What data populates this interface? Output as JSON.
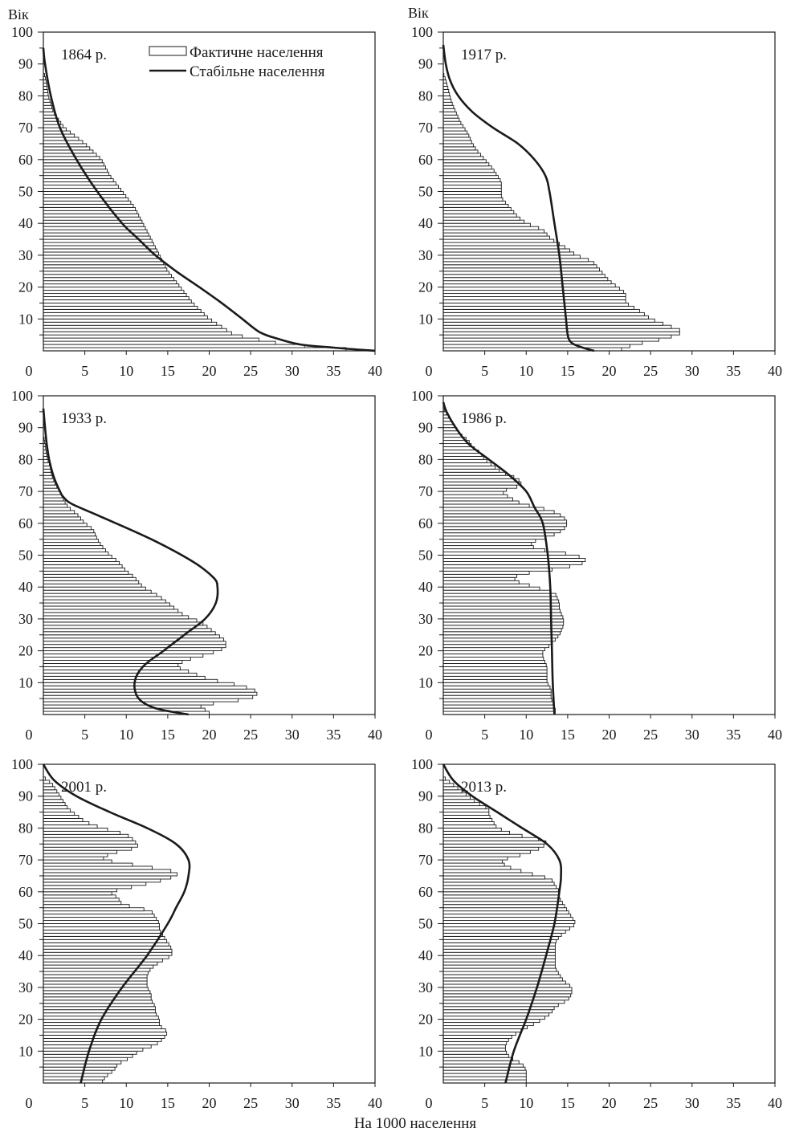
{
  "figure": {
    "ylabel": "Вік",
    "xlabel": "На 1000 населення"
  },
  "legend": {
    "actual_label": "Фактичне населення",
    "stable_label": "Стабільне населення"
  },
  "chart_data": [
    {
      "type": "bar",
      "title": "1864 р.",
      "xlim": [
        0,
        40
      ],
      "ylim": [
        0,
        100
      ],
      "xticks": [
        0,
        5,
        10,
        15,
        20,
        25,
        30,
        35,
        40
      ],
      "yticks": [
        10,
        20,
        30,
        40,
        50,
        60,
        70,
        80,
        90,
        100
      ],
      "actual": {
        "ages": [
          0,
          2,
          5,
          10,
          15,
          20,
          25,
          30,
          35,
          40,
          45,
          50,
          55,
          60,
          65,
          70,
          73,
          75,
          80,
          85,
          88
        ],
        "values": [
          39,
          29,
          23,
          20,
          18,
          16.5,
          15,
          14,
          13,
          12,
          11,
          9.5,
          8,
          7,
          5,
          2.5,
          1.7,
          1.2,
          0.6,
          0.3,
          0
        ]
      },
      "stable": {
        "ages": [
          0,
          1,
          2,
          4,
          6,
          10,
          15,
          20,
          25,
          30,
          35,
          40,
          50,
          60,
          70,
          80,
          90,
          95
        ],
        "values": [
          40,
          35,
          31,
          28,
          26,
          24,
          21.5,
          18.8,
          16,
          13.5,
          11.5,
          9.5,
          6.5,
          4,
          2,
          0.9,
          0.2,
          0
        ]
      }
    },
    {
      "type": "bar",
      "title": "1917 р.",
      "xlim": [
        0,
        40
      ],
      "ylim": [
        0,
        100
      ],
      "xticks": [
        0,
        5,
        10,
        15,
        20,
        25,
        30,
        35,
        40
      ],
      "yticks": [
        10,
        20,
        30,
        40,
        50,
        60,
        70,
        80,
        90,
        100
      ],
      "actual": {
        "ages": [
          0,
          2,
          4,
          6,
          8,
          10,
          12,
          15,
          18,
          20,
          22,
          25,
          28,
          30,
          32,
          35,
          38,
          40,
          42,
          45,
          48,
          50,
          53,
          55,
          57,
          60,
          63,
          65,
          68,
          70,
          72,
          75,
          78,
          80,
          83,
          85,
          87
        ],
        "values": [
          21,
          23,
          27,
          29,
          27,
          25,
          24,
          22,
          22,
          21,
          20,
          19,
          18,
          16,
          15,
          13,
          12,
          10,
          9,
          8,
          7,
          7,
          7,
          6.5,
          6,
          5,
          4,
          3.5,
          3,
          2.5,
          2,
          1.5,
          1,
          0.8,
          0.5,
          0.3,
          0
        ]
      },
      "stable": {
        "ages": [
          0,
          1,
          2,
          3,
          5,
          10,
          20,
          30,
          40,
          50,
          55,
          60,
          65,
          70,
          75,
          80,
          85,
          90,
          96
        ],
        "values": [
          18.2,
          16.8,
          15.8,
          15.3,
          15,
          14.8,
          14.4,
          14,
          13.4,
          12.8,
          12.3,
          11,
          9,
          6,
          3.5,
          1.8,
          0.8,
          0.3,
          0
        ]
      }
    },
    {
      "type": "bar",
      "title": "1933 р.",
      "xlim": [
        0,
        40
      ],
      "ylim": [
        0,
        100
      ],
      "xticks": [
        0,
        5,
        10,
        15,
        20,
        25,
        30,
        35,
        40
      ],
      "yticks": [
        10,
        20,
        30,
        40,
        50,
        60,
        70,
        80,
        90,
        100
      ],
      "actual": {
        "ages": [
          0,
          1,
          2,
          3,
          5,
          7,
          9,
          11,
          13,
          15,
          17,
          19,
          21,
          23,
          25,
          27,
          29,
          31,
          33,
          35,
          37,
          40,
          43,
          45,
          48,
          50,
          53,
          55,
          58,
          60,
          63,
          65,
          67,
          70,
          72,
          75,
          78,
          80,
          83,
          85,
          88
        ],
        "values": [
          20,
          20,
          19,
          19,
          25,
          26,
          24,
          20,
          18,
          16,
          17,
          20,
          22,
          22,
          21,
          20,
          19,
          17,
          16,
          15,
          14,
          12,
          11,
          10,
          9,
          8,
          7,
          6.5,
          6,
          5,
          4,
          3,
          2.5,
          2,
          1.5,
          1,
          0.8,
          0.5,
          0.3,
          0.2,
          0
        ]
      },
      "stable": {
        "ages": [
          0,
          2,
          5,
          10,
          15,
          20,
          25,
          30,
          35,
          40,
          43,
          48,
          55,
          62,
          66,
          68,
          70,
          75,
          80,
          85,
          90,
          96
        ],
        "values": [
          17.5,
          13.5,
          11.5,
          11,
          12,
          14.5,
          17,
          19.5,
          20.8,
          21,
          20.5,
          18,
          13,
          7,
          3.5,
          2.5,
          2,
          1.2,
          0.7,
          0.4,
          0.2,
          0
        ]
      }
    },
    {
      "type": "bar",
      "title": "1986 р.",
      "xlim": [
        0,
        40
      ],
      "ylim": [
        0,
        100
      ],
      "xticks": [
        0,
        5,
        10,
        15,
        20,
        25,
        30,
        35,
        40
      ],
      "yticks": [
        10,
        20,
        30,
        40,
        50,
        60,
        70,
        80,
        90,
        100
      ],
      "actual": {
        "ages": [
          0,
          2,
          5,
          8,
          10,
          13,
          15,
          18,
          20,
          22,
          25,
          28,
          30,
          33,
          35,
          38,
          40,
          42,
          44,
          46,
          48,
          50,
          52,
          54,
          56,
          58,
          60,
          62,
          64,
          66,
          68,
          70,
          72,
          74,
          76,
          78,
          80,
          82,
          84,
          86,
          88,
          90,
          92,
          94,
          96
        ],
        "values": [
          13.5,
          13.5,
          13,
          13,
          12.5,
          12.5,
          12.5,
          12,
          12,
          13,
          14,
          14.5,
          14.5,
          14,
          14,
          13.5,
          11,
          8.5,
          9,
          14.5,
          17.5,
          16,
          11,
          10.5,
          13,
          14.5,
          15,
          14.5,
          13,
          9.5,
          8,
          7,
          9.5,
          9,
          7,
          6,
          5,
          4.5,
          3.5,
          3,
          2,
          1.5,
          1,
          0.5,
          0
        ]
      },
      "stable": {
        "ages": [
          0,
          10,
          20,
          30,
          40,
          50,
          60,
          65,
          70,
          75,
          80,
          85,
          90,
          95,
          98
        ],
        "values": [
          13.4,
          13.2,
          13.1,
          13,
          12.9,
          12.6,
          12,
          11,
          10,
          8,
          5.5,
          3,
          1.5,
          0.4,
          0
        ]
      }
    },
    {
      "type": "bar",
      "title": "2001 р.",
      "xlim": [
        0,
        40
      ],
      "ylim": [
        0,
        100
      ],
      "xticks": [
        0,
        5,
        10,
        15,
        20,
        25,
        30,
        35,
        40
      ],
      "yticks": [
        10,
        20,
        30,
        40,
        50,
        60,
        70,
        80,
        90,
        100
      ],
      "actual": {
        "ages": [
          0,
          2,
          4,
          6,
          8,
          10,
          12,
          14,
          16,
          18,
          20,
          22,
          24,
          26,
          28,
          30,
          32,
          34,
          36,
          38,
          40,
          42,
          44,
          46,
          48,
          50,
          52,
          54,
          56,
          58,
          60,
          62,
          64,
          66,
          68,
          70,
          72,
          74,
          76,
          78,
          80,
          82,
          84,
          86,
          88,
          90,
          92,
          94,
          96
        ],
        "values": [
          7,
          7.5,
          8.5,
          9,
          10.5,
          11.5,
          13.5,
          14.5,
          15,
          14,
          14,
          13.5,
          13.5,
          13,
          13,
          12.5,
          12.5,
          12.5,
          13,
          14,
          15.5,
          15.5,
          15,
          14.5,
          14,
          14,
          13.5,
          13,
          9.5,
          9,
          8,
          11.5,
          15,
          16.5,
          12,
          7,
          8,
          11.5,
          11,
          10,
          7,
          5,
          4,
          3,
          2.5,
          2,
          1.5,
          1,
          0
        ]
      },
      "stable": {
        "ages": [
          0,
          10,
          20,
          30,
          40,
          50,
          55,
          60,
          65,
          70,
          75,
          80,
          85,
          90,
          95,
          100
        ],
        "values": [
          4.5,
          5.5,
          7,
          9.5,
          12.5,
          15,
          16,
          17,
          17.5,
          17.5,
          16,
          12.5,
          8,
          4,
          1.3,
          0
        ]
      }
    },
    {
      "type": "bar",
      "title": "2013 р.",
      "xlim": [
        0,
        40
      ],
      "ylim": [
        0,
        100
      ],
      "xticks": [
        0,
        5,
        10,
        15,
        20,
        25,
        30,
        35,
        40
      ],
      "yticks": [
        10,
        20,
        30,
        40,
        50,
        60,
        70,
        80,
        90,
        100
      ],
      "actual": {
        "ages": [
          0,
          2,
          4,
          6,
          8,
          10,
          12,
          14,
          16,
          18,
          20,
          22,
          24,
          26,
          28,
          30,
          32,
          34,
          36,
          38,
          40,
          42,
          44,
          46,
          48,
          50,
          52,
          54,
          56,
          58,
          60,
          62,
          64,
          66,
          68,
          70,
          72,
          74,
          76,
          78,
          80,
          82,
          84,
          86,
          88,
          90,
          92,
          94,
          96
        ],
        "values": [
          10,
          10,
          10,
          9.5,
          8,
          7.5,
          7.5,
          8,
          9,
          10.5,
          12,
          13,
          13.5,
          15,
          15.5,
          15.5,
          14.5,
          14,
          13.5,
          13.5,
          13.5,
          13.5,
          13.5,
          14,
          15,
          16,
          15.5,
          15,
          14.5,
          14,
          14,
          13.5,
          13,
          10,
          7.5,
          7,
          10,
          12,
          12.5,
          8.5,
          6.5,
          6,
          5.5,
          5.5,
          4,
          3,
          2,
          1,
          0
        ]
      },
      "stable": {
        "ages": [
          0,
          10,
          20,
          30,
          40,
          50,
          60,
          65,
          70,
          75,
          80,
          85,
          90,
          95,
          100
        ],
        "values": [
          7.5,
          8.5,
          10,
          11.3,
          12.4,
          13.4,
          14,
          14.2,
          14,
          12.5,
          9.5,
          6.5,
          3.5,
          1.2,
          0
        ]
      }
    }
  ]
}
